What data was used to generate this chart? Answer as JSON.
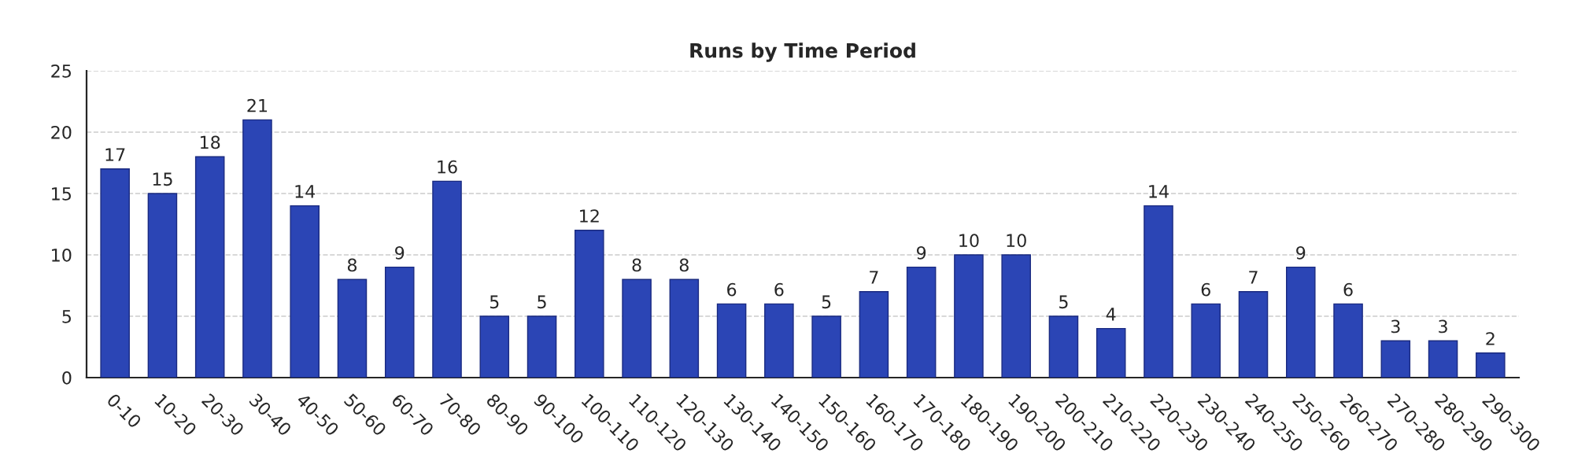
{
  "chart_data": {
    "type": "bar",
    "title": "Runs by Time Period",
    "categories": [
      "0-10",
      "10-20",
      "20-30",
      "30-40",
      "40-50",
      "50-60",
      "60-70",
      "70-80",
      "80-90",
      "90-100",
      "100-110",
      "110-120",
      "120-130",
      "130-140",
      "140-150",
      "150-160",
      "160-170",
      "170-180",
      "180-190",
      "190-200",
      "200-210",
      "210-220",
      "220-230",
      "230-240",
      "240-250",
      "250-260",
      "260-270",
      "270-280",
      "280-290",
      "290-300"
    ],
    "values": [
      17,
      15,
      18,
      21,
      14,
      8,
      9,
      16,
      5,
      5,
      12,
      8,
      8,
      6,
      6,
      5,
      7,
      9,
      10,
      10,
      5,
      4,
      14,
      6,
      7,
      9,
      6,
      3,
      3,
      2
    ],
    "color": "#2b45b5",
    "ylim": [
      0,
      25
    ],
    "yticks": [
      0,
      5,
      10,
      15,
      20,
      25
    ],
    "grid": "y",
    "data_labels": true
  }
}
